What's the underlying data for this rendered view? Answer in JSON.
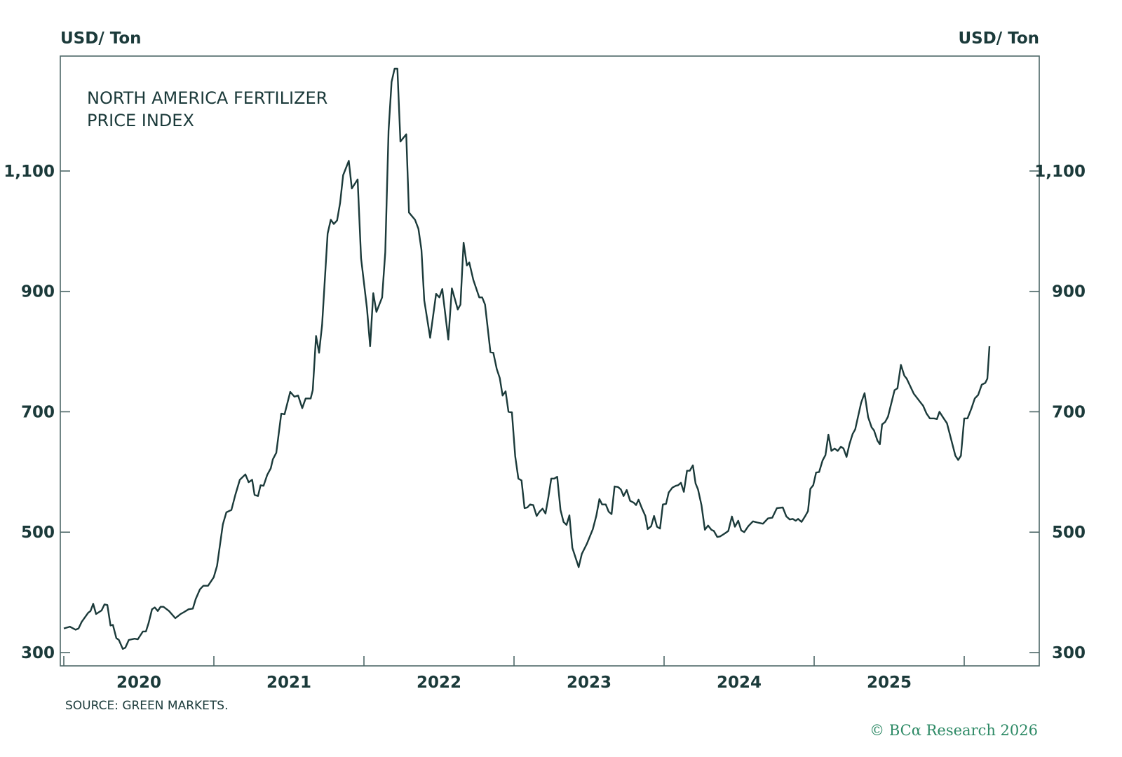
{
  "chart_data": {
    "type": "line",
    "title": "NORTH AMERICA FERTILIZER PRICE INDEX",
    "title_lines": [
      "NORTH AMERICA FERTILIZER",
      "PRICE INDEX"
    ],
    "ylabel_left": "USD/ Ton",
    "ylabel_right": "USD/ Ton",
    "xlabel": "",
    "source": "SOURCE: GREEN MARKETS.",
    "copyright": "© BCα Research 2026",
    "ylim": [
      278,
      1291
    ],
    "xlim": [
      2019.976,
      2026.5
    ],
    "yticks": [
      300,
      500,
      700,
      900,
      1100
    ],
    "ytick_labels": [
      "300",
      "500",
      "700",
      "900",
      "1,100"
    ],
    "xticks": [
      2020,
      2021,
      2022,
      2023,
      2024,
      2025,
      2026
    ],
    "xtick_labels": [
      "2020",
      "2021",
      "2022",
      "2023",
      "2024",
      "2025"
    ],
    "xtick_label_positions": [
      2020.5,
      2021.5,
      2022.5,
      2023.5,
      2024.5,
      2025.5
    ],
    "grid": false,
    "line_color": "#1b3a3a",
    "series": [
      {
        "name": "North America Fertilizer Price Index",
        "points": [
          [
            2020.0,
            340
          ],
          [
            2020.04,
            343
          ],
          [
            2020.079,
            338
          ],
          [
            2020.098,
            340
          ],
          [
            2020.119,
            351
          ],
          [
            2020.162,
            366
          ],
          [
            2020.178,
            369
          ],
          [
            2020.196,
            381
          ],
          [
            2020.215,
            364
          ],
          [
            2020.252,
            370
          ],
          [
            2020.271,
            380
          ],
          [
            2020.29,
            379
          ],
          [
            2020.311,
            345
          ],
          [
            2020.327,
            346
          ],
          [
            2020.35,
            324
          ],
          [
            2020.367,
            321
          ],
          [
            2020.393,
            306
          ],
          [
            2020.41,
            308
          ],
          [
            2020.433,
            321
          ],
          [
            2020.472,
            323
          ],
          [
            2020.493,
            322
          ],
          [
            2020.527,
            335
          ],
          [
            2020.547,
            335
          ],
          [
            2020.565,
            349
          ],
          [
            2020.588,
            372
          ],
          [
            2020.606,
            375
          ],
          [
            2020.626,
            369
          ],
          [
            2020.645,
            376
          ],
          [
            2020.664,
            376
          ],
          [
            2020.701,
            369
          ],
          [
            2020.743,
            357
          ],
          [
            2020.778,
            364
          ],
          [
            2020.799,
            367
          ],
          [
            2020.832,
            372
          ],
          [
            2020.86,
            373
          ],
          [
            2020.879,
            389
          ],
          [
            2020.907,
            405
          ],
          [
            2020.93,
            411
          ],
          [
            2020.961,
            411
          ],
          [
            2020.999,
            425
          ],
          [
            2021.021,
            444
          ],
          [
            2021.06,
            513
          ],
          [
            2021.083,
            533
          ],
          [
            2021.117,
            537
          ],
          [
            2021.143,
            562
          ],
          [
            2021.173,
            587
          ],
          [
            2021.21,
            596
          ],
          [
            2021.232,
            583
          ],
          [
            2021.255,
            587
          ],
          [
            2021.271,
            562
          ],
          [
            2021.294,
            560
          ],
          [
            2021.311,
            578
          ],
          [
            2021.331,
            577
          ],
          [
            2021.355,
            595
          ],
          [
            2021.379,
            606
          ],
          [
            2021.393,
            621
          ],
          [
            2021.416,
            632
          ],
          [
            2021.449,
            697
          ],
          [
            2021.471,
            696
          ],
          [
            2021.509,
            733
          ],
          [
            2021.537,
            725
          ],
          [
            2021.561,
            727
          ],
          [
            2021.589,
            706
          ],
          [
            2021.611,
            722
          ],
          [
            2021.645,
            722
          ],
          [
            2021.659,
            736
          ],
          [
            2021.681,
            826
          ],
          [
            2021.701,
            798
          ],
          [
            2021.721,
            844
          ],
          [
            2021.758,
            996
          ],
          [
            2021.779,
            1019
          ],
          [
            2021.799,
            1012
          ],
          [
            2021.821,
            1018
          ],
          [
            2021.841,
            1047
          ],
          [
            2021.861,
            1093
          ],
          [
            2021.899,
            1117
          ],
          [
            2021.919,
            1071
          ],
          [
            2021.958,
            1086
          ],
          [
            2021.981,
            955
          ],
          [
            2022.02,
            872
          ],
          [
            2022.041,
            809
          ],
          [
            2022.062,
            897
          ],
          [
            2022.083,
            866
          ],
          [
            2022.121,
            890
          ],
          [
            2022.142,
            965
          ],
          [
            2022.164,
            1167
          ],
          [
            2022.184,
            1248
          ],
          [
            2022.204,
            1270
          ],
          [
            2022.223,
            1270
          ],
          [
            2022.243,
            1149
          ],
          [
            2022.282,
            1161
          ],
          [
            2022.3,
            1031
          ],
          [
            2022.34,
            1019
          ],
          [
            2022.363,
            1004
          ],
          [
            2022.383,
            969
          ],
          [
            2022.402,
            885
          ],
          [
            2022.441,
            823
          ],
          [
            2022.481,
            896
          ],
          [
            2022.503,
            890
          ],
          [
            2022.522,
            904
          ],
          [
            2022.562,
            820
          ],
          [
            2022.586,
            905
          ],
          [
            2022.625,
            870
          ],
          [
            2022.643,
            878
          ],
          [
            2022.664,
            981
          ],
          [
            2022.686,
            943
          ],
          [
            2022.702,
            948
          ],
          [
            2022.729,
            919
          ],
          [
            2022.768,
            890
          ],
          [
            2022.788,
            890
          ],
          [
            2022.807,
            878
          ],
          [
            2022.843,
            799
          ],
          [
            2022.862,
            798
          ],
          [
            2022.885,
            771
          ],
          [
            2022.905,
            756
          ],
          [
            2022.924,
            727
          ],
          [
            2022.944,
            734
          ],
          [
            2022.963,
            700
          ],
          [
            2022.986,
            699
          ],
          [
            2023.008,
            626
          ],
          [
            2023.029,
            589
          ],
          [
            2023.05,
            586
          ],
          [
            2023.07,
            540
          ],
          [
            2023.089,
            541
          ],
          [
            2023.107,
            546
          ],
          [
            2023.128,
            545
          ],
          [
            2023.151,
            527
          ],
          [
            2023.17,
            534
          ],
          [
            2023.19,
            539
          ],
          [
            2023.21,
            531
          ],
          [
            2023.229,
            558
          ],
          [
            2023.248,
            589
          ],
          [
            2023.268,
            589
          ],
          [
            2023.288,
            592
          ],
          [
            2023.31,
            537
          ],
          [
            2023.33,
            517
          ],
          [
            2023.35,
            512
          ],
          [
            2023.369,
            528
          ],
          [
            2023.389,
            474
          ],
          [
            2023.431,
            442
          ],
          [
            2023.452,
            464
          ],
          [
            2023.486,
            481
          ],
          [
            2023.525,
            505
          ],
          [
            2023.548,
            527
          ],
          [
            2023.569,
            555
          ],
          [
            2023.587,
            546
          ],
          [
            2023.611,
            546
          ],
          [
            2023.631,
            534
          ],
          [
            2023.65,
            530
          ],
          [
            2023.67,
            576
          ],
          [
            2023.693,
            575
          ],
          [
            2023.712,
            571
          ],
          [
            2023.73,
            560
          ],
          [
            2023.751,
            570
          ],
          [
            2023.774,
            552
          ],
          [
            2023.798,
            549
          ],
          [
            2023.813,
            545
          ],
          [
            2023.83,
            554
          ],
          [
            2023.852,
            540
          ],
          [
            2023.875,
            527
          ],
          [
            2023.891,
            505
          ],
          [
            2023.914,
            510
          ],
          [
            2023.933,
            527
          ],
          [
            2023.953,
            509
          ],
          [
            2023.973,
            506
          ],
          [
            2023.992,
            546
          ],
          [
            2024.013,
            547
          ],
          [
            2024.031,
            566
          ],
          [
            2024.055,
            574
          ],
          [
            2024.078,
            577
          ],
          [
            2024.093,
            578
          ],
          [
            2024.112,
            582
          ],
          [
            2024.132,
            567
          ],
          [
            2024.153,
            602
          ],
          [
            2024.171,
            602
          ],
          [
            2024.192,
            611
          ],
          [
            2024.21,
            581
          ],
          [
            2024.226,
            571
          ],
          [
            2024.249,
            545
          ],
          [
            2024.272,
            504
          ],
          [
            2024.293,
            511
          ],
          [
            2024.315,
            504
          ],
          [
            2024.332,
            502
          ],
          [
            2024.354,
            492
          ],
          [
            2024.374,
            493
          ],
          [
            2024.405,
            498
          ],
          [
            2024.428,
            502
          ],
          [
            2024.452,
            526
          ],
          [
            2024.472,
            509
          ],
          [
            2024.494,
            519
          ],
          [
            2024.514,
            503
          ],
          [
            2024.534,
            500
          ],
          [
            2024.561,
            510
          ],
          [
            2024.592,
            518
          ],
          [
            2024.623,
            516
          ],
          [
            2024.659,
            514
          ],
          [
            2024.693,
            523
          ],
          [
            2024.721,
            524
          ],
          [
            2024.752,
            540
          ],
          [
            2024.791,
            541
          ],
          [
            2024.815,
            526
          ],
          [
            2024.838,
            521
          ],
          [
            2024.857,
            522
          ],
          [
            2024.877,
            519
          ],
          [
            2024.893,
            522
          ],
          [
            2024.916,
            517
          ],
          [
            2024.939,
            526
          ],
          [
            2024.959,
            535
          ],
          [
            2024.975,
            572
          ],
          [
            2024.994,
            578
          ],
          [
            2025.013,
            599
          ],
          [
            2025.033,
            600
          ],
          [
            2025.056,
            619
          ],
          [
            2025.075,
            628
          ],
          [
            2025.095,
            662
          ],
          [
            2025.115,
            635
          ],
          [
            2025.137,
            639
          ],
          [
            2025.157,
            635
          ],
          [
            2025.178,
            642
          ],
          [
            2025.196,
            639
          ],
          [
            2025.216,
            625
          ],
          [
            2025.235,
            646
          ],
          [
            2025.256,
            663
          ],
          [
            2025.274,
            671
          ],
          [
            2025.313,
            715
          ],
          [
            2025.336,
            731
          ],
          [
            2025.36,
            691
          ],
          [
            2025.383,
            674
          ],
          [
            2025.399,
            669
          ],
          [
            2025.422,
            652
          ],
          [
            2025.438,
            646
          ],
          [
            2025.453,
            679
          ],
          [
            2025.473,
            683
          ],
          [
            2025.492,
            692
          ],
          [
            2025.536,
            736
          ],
          [
            2025.555,
            739
          ],
          [
            2025.578,
            778
          ],
          [
            2025.601,
            760
          ],
          [
            2025.617,
            755
          ],
          [
            2025.664,
            730
          ],
          [
            2025.707,
            716
          ],
          [
            2025.726,
            710
          ],
          [
            2025.749,
            697
          ],
          [
            2025.771,
            689
          ],
          [
            2025.799,
            689
          ],
          [
            2025.818,
            688
          ],
          [
            2025.835,
            700
          ],
          [
            2025.858,
            691
          ],
          [
            2025.885,
            681
          ],
          [
            2025.941,
            627
          ],
          [
            2025.96,
            620
          ],
          [
            2025.978,
            627
          ],
          [
            2026.0,
            689
          ],
          [
            2026.022,
            689
          ],
          [
            2026.047,
            705
          ],
          [
            2026.07,
            722
          ],
          [
            2026.093,
            728
          ],
          [
            2026.117,
            745
          ],
          [
            2026.14,
            748
          ],
          [
            2026.154,
            755
          ],
          [
            2026.168,
            809
          ]
        ]
      }
    ]
  }
}
